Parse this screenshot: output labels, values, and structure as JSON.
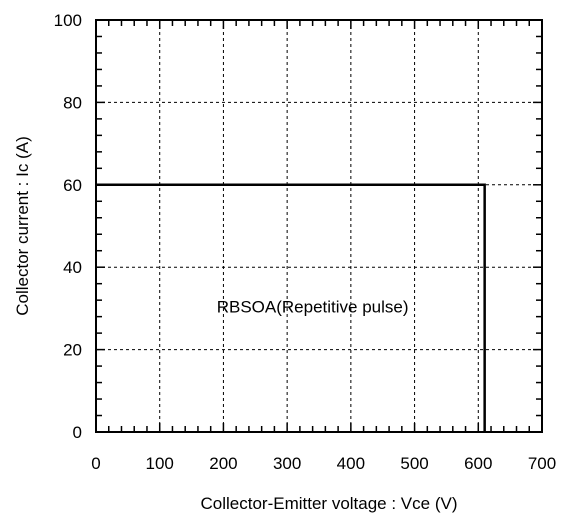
{
  "chart_data": {
    "type": "line",
    "title": "",
    "xlabel": "Collector-Emitter voltage : Vce (V)",
    "ylabel": "Collector current : Ic (A)",
    "xlim": [
      0,
      700
    ],
    "ylim": [
      0,
      100
    ],
    "x_ticks": [
      0,
      100,
      200,
      300,
      400,
      500,
      600,
      700
    ],
    "y_ticks": [
      0,
      20,
      40,
      60,
      80,
      100
    ],
    "x_tick_labels": [
      "0",
      "100",
      "200",
      "300",
      "400",
      "500",
      "600",
      "700"
    ],
    "y_tick_labels": [
      "0",
      "20",
      "40",
      "60",
      "80",
      "100"
    ],
    "grid": true,
    "series": [
      {
        "x": [
          0,
          610,
          610
        ],
        "y": [
          60,
          60,
          0
        ]
      }
    ],
    "annotations": [
      {
        "text": "RBSOA(Repetitive pulse)",
        "x": 340,
        "y": 29
      }
    ],
    "colors": {
      "line": "#000000",
      "grid": "#000000",
      "background": "#ffffff"
    }
  }
}
